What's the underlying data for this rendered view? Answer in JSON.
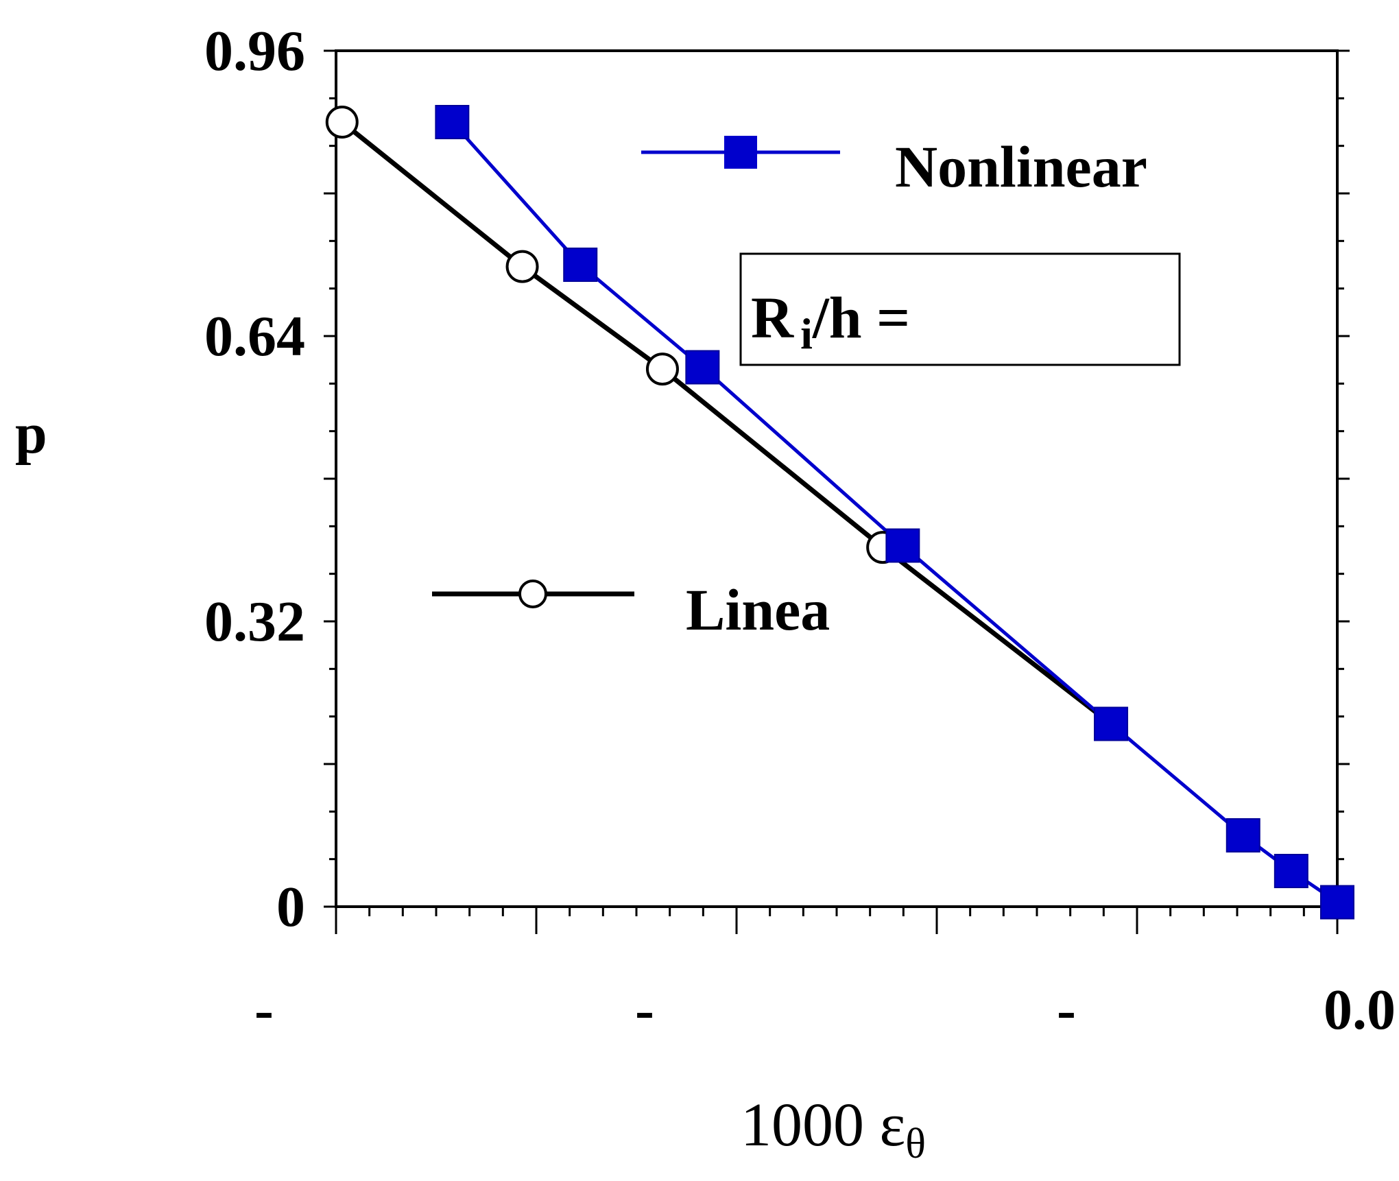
{
  "chart_data": {
    "type": "line",
    "title": "",
    "xlabel": "1000 ε",
    "xlabel_subscript": "θ",
    "ylabel": "p",
    "x_tick_labels": [
      "-",
      "-",
      "-",
      "0.0"
    ],
    "y_ticks": [
      0,
      0.32,
      0.64,
      0.96
    ],
    "y_tick_labels": [
      "0",
      "0.32",
      "0.64",
      "0.96"
    ],
    "xlim": [
      -5.0,
      0.0
    ],
    "ylim": [
      0,
      0.96
    ],
    "grid": false,
    "legend_position": "inside",
    "annotation": {
      "prefix": "R",
      "subscript": "i",
      "suffix": "/h ="
    },
    "series": [
      {
        "name": "Nonlinear",
        "color": "#0000cc",
        "marker": "filled-square",
        "x": [
          -4.42,
          -3.78,
          -3.17,
          -2.17,
          -1.13,
          -0.47,
          -0.23,
          0.0
        ],
        "y": [
          0.88,
          0.72,
          0.605,
          0.405,
          0.205,
          0.08,
          0.04,
          0.005
        ]
      },
      {
        "name": "Linea",
        "color": "#000000",
        "marker": "open-circle",
        "x": [
          -4.97,
          -4.07,
          -3.37,
          -2.27,
          -1.13
        ],
        "y": [
          0.88,
          0.718,
          0.603,
          0.403,
          0.205
        ]
      }
    ]
  }
}
